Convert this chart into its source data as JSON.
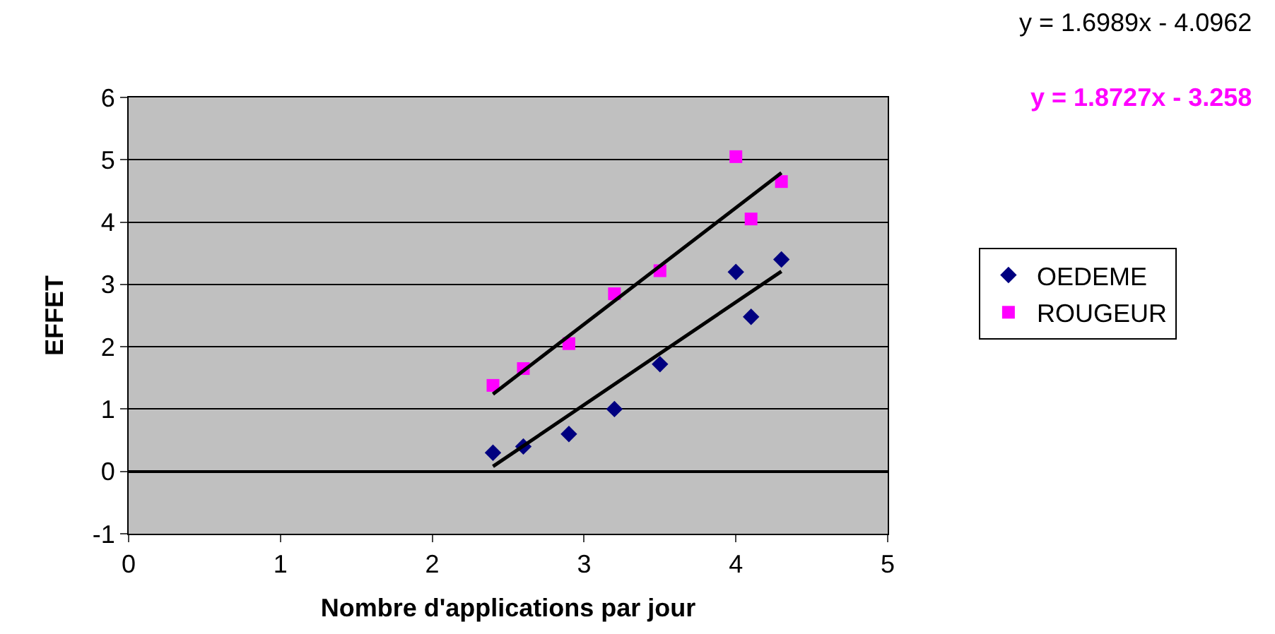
{
  "chart_data": {
    "type": "scatter",
    "xlabel": "Nombre d'applications par jour",
    "ylabel": "EFFET",
    "xlim": [
      0,
      5
    ],
    "xticks": [
      0,
      1,
      2,
      3,
      4,
      5
    ],
    "ylim": [
      -1,
      6
    ],
    "yticks": [
      -1,
      0,
      1,
      2,
      3,
      4,
      5,
      6
    ],
    "grid": "y",
    "legend": "right",
    "series": [
      {
        "name": "OEDEME",
        "color": "#000080",
        "marker": "diamond",
        "x": [
          2.4,
          2.6,
          2.9,
          3.2,
          3.5,
          4.0,
          4.1,
          4.3
        ],
        "values": [
          0.3,
          0.4,
          0.6,
          1.0,
          1.72,
          3.2,
          2.48,
          3.4
        ]
      },
      {
        "name": "ROUGEUR",
        "color": "#ff00ff",
        "marker": "square",
        "x": [
          2.4,
          2.6,
          2.9,
          3.2,
          3.5,
          4.0,
          4.1,
          4.3
        ],
        "values": [
          1.38,
          1.65,
          2.05,
          2.85,
          3.22,
          5.05,
          4.05,
          4.65
        ]
      },
      {
        "type": "line",
        "color": "#000000",
        "marker": "none",
        "x": [
          2.4,
          4.3
        ],
        "values": [
          0.08,
          3.21
        ]
      },
      {
        "type": "line",
        "color": "#000000",
        "marker": "none",
        "x": [
          2.4,
          4.3
        ],
        "values": [
          1.24,
          4.79
        ]
      }
    ],
    "annotations": [
      "y = 1.6989x - 4.0962",
      "y = 1.8727x - 3.258"
    ]
  }
}
